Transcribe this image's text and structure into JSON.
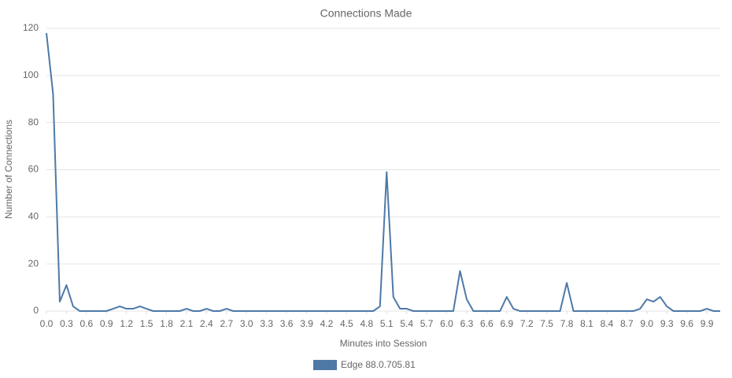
{
  "chart_data": {
    "type": "line",
    "title": "Connections Made",
    "x_label": "Minutes into Session",
    "y_label": "Number of Connections",
    "x": [
      0,
      0.1,
      0.2,
      0.3,
      0.4,
      0.5,
      0.6,
      0.7,
      0.8,
      0.9,
      1.0,
      1.1,
      1.2,
      1.3,
      1.4,
      1.5,
      1.6,
      1.7,
      1.8,
      1.9,
      2.0,
      2.1,
      2.2,
      2.3,
      2.4,
      2.5,
      2.6,
      2.7,
      2.8,
      2.9,
      3.0,
      3.1,
      3.2,
      3.3,
      3.4,
      3.5,
      3.6,
      3.7,
      3.8,
      3.9,
      4.0,
      4.1,
      4.2,
      4.3,
      4.4,
      4.5,
      4.6,
      4.7,
      4.8,
      4.9,
      5.0,
      5.1,
      5.2,
      5.3,
      5.4,
      5.5,
      5.6,
      5.7,
      5.8,
      5.9,
      6.0,
      6.1,
      6.2,
      6.3,
      6.4,
      6.5,
      6.6,
      6.7,
      6.8,
      6.9,
      7.0,
      7.1,
      7.2,
      7.3,
      7.4,
      7.5,
      7.6,
      7.7,
      7.8,
      7.9,
      8.0,
      8.1,
      8.2,
      8.3,
      8.4,
      8.5,
      8.6,
      8.7,
      8.8,
      8.9,
      9.0,
      9.1,
      9.2,
      9.3,
      9.4,
      9.5,
      9.6,
      9.7,
      9.8,
      9.9,
      10.0,
      10.1
    ],
    "series": [
      {
        "name": "Edge 88.0.705.81",
        "color": "#4e79a7",
        "values": [
          118,
          92,
          4,
          11,
          2,
          0,
          0,
          0,
          0,
          0,
          1,
          2,
          1,
          1,
          2,
          1,
          0,
          0,
          0,
          0,
          0,
          1,
          0,
          0,
          1,
          0,
          0,
          1,
          0,
          0,
          0,
          0,
          0,
          0,
          0,
          0,
          0,
          0,
          0,
          0,
          0,
          0,
          0,
          0,
          0,
          0,
          0,
          0,
          0,
          0,
          2,
          59,
          6,
          1,
          1,
          0,
          0,
          0,
          0,
          0,
          0,
          0,
          17,
          5,
          0,
          0,
          0,
          0,
          0,
          6,
          1,
          0,
          0,
          0,
          0,
          0,
          0,
          0,
          12,
          0,
          0,
          0,
          0,
          0,
          0,
          0,
          0,
          0,
          0,
          1,
          5,
          4,
          6,
          2,
          0,
          0,
          0,
          0,
          0,
          1,
          0,
          0
        ]
      }
    ],
    "xlim": [
      0,
      10.1
    ],
    "xticks": [
      {
        "value": 0,
        "label": "0.0"
      },
      0.3,
      0.6,
      0.9,
      1.2,
      1.5,
      1.8,
      2.1,
      2.4,
      2.7,
      {
        "value": 3,
        "label": "3.0"
      },
      3.3,
      3.6,
      3.9,
      4.2,
      4.5,
      4.8,
      5.1,
      5.4,
      5.7,
      {
        "value": 6,
        "label": "6.0"
      },
      6.3,
      6.6,
      6.9,
      7.2,
      7.5,
      7.8,
      8.1,
      8.4,
      8.7,
      {
        "value": 9,
        "label": "9.0"
      },
      9.3,
      9.6,
      9.9
    ],
    "ylim": [
      0,
      120
    ],
    "yticks": [
      0,
      20,
      40,
      60,
      80,
      100,
      120
    ],
    "grid": true,
    "legend": "bottom"
  }
}
